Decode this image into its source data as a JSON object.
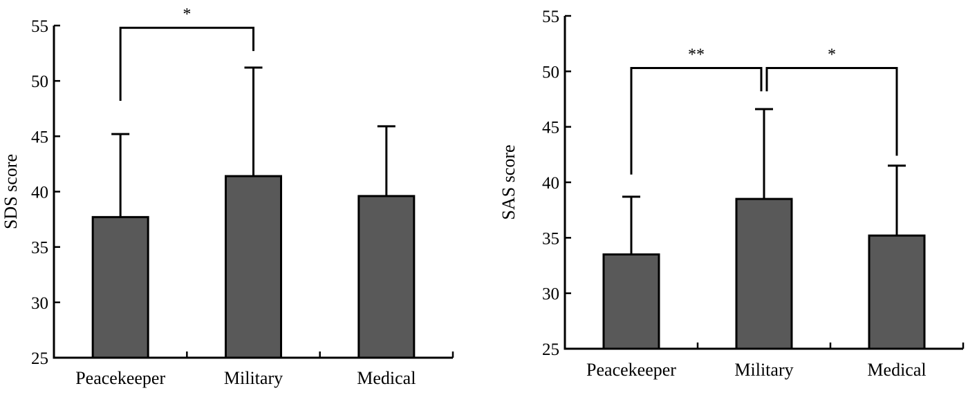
{
  "chart_data": [
    {
      "type": "bar",
      "title": "",
      "xlabel": "",
      "ylabel": "SDS score",
      "ylim": [
        25,
        55
      ],
      "yticks": [
        25,
        30,
        35,
        40,
        45,
        50,
        55
      ],
      "categories": [
        "Peacekeeper",
        "Military",
        "Medical"
      ],
      "values": [
        37.7,
        41.4,
        39.6
      ],
      "error_upper": [
        45.2,
        51.2,
        45.9
      ],
      "bar_color": "#595959",
      "significance": [
        {
          "from": "Peacekeeper",
          "to": "Military",
          "label": "*",
          "level": 54.8,
          "left_end": 48.2,
          "right_end": 52.7
        }
      ]
    },
    {
      "type": "bar",
      "title": "",
      "xlabel": "",
      "ylabel": "SAS score",
      "ylim": [
        25,
        55
      ],
      "yticks": [
        25,
        30,
        35,
        40,
        45,
        50,
        55
      ],
      "categories": [
        "Peacekeeper",
        "Military",
        "Medical"
      ],
      "values": [
        33.5,
        38.5,
        35.2
      ],
      "error_upper": [
        38.7,
        46.6,
        41.5
      ],
      "bar_color": "#595959",
      "significance": [
        {
          "from": "Peacekeeper",
          "to": "Military",
          "label": "**",
          "level": 50.3,
          "left_end": 40.7,
          "right_end": 48.2
        },
        {
          "from": "Military",
          "to": "Medical",
          "label": "*",
          "level": 50.3,
          "left_end": 48.2,
          "right_end": 42.4
        }
      ]
    }
  ]
}
